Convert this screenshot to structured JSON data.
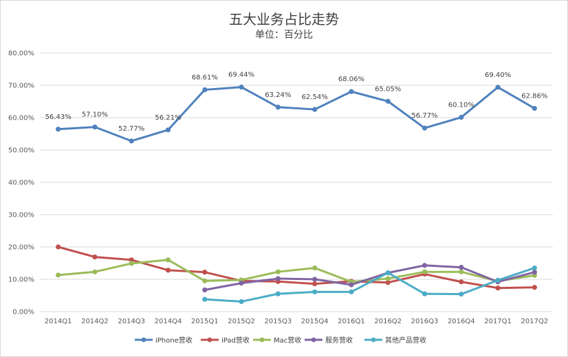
{
  "chart_data": {
    "type": "line",
    "title": "五大业务占比走势",
    "subtitle": "单位：百分比",
    "categories": [
      "2014Q1",
      "2014Q2",
      "2014Q3",
      "2014Q4",
      "2015Q1",
      "2015Q2",
      "2015Q3",
      "2015Q4",
      "2016Q1",
      "2016Q2",
      "2016Q3",
      "2016Q4",
      "2017Q1",
      "2017Q2"
    ],
    "y_ticks": [
      "0.00%",
      "10.00%",
      "20.00%",
      "30.00%",
      "40.00%",
      "50.00%",
      "60.00%",
      "70.00%",
      "80.00%"
    ],
    "ylim": [
      0,
      80
    ],
    "grid": true,
    "legend_position": "bottom",
    "series": [
      {
        "name": "iPhone营收",
        "color": "#4f81bd",
        "values": [
          56.43,
          57.1,
          52.77,
          56.21,
          68.61,
          69.44,
          63.24,
          62.54,
          68.06,
          65.05,
          56.77,
          60.1,
          69.4,
          62.86
        ],
        "labels": [
          "56.43%",
          "57.10%",
          "52.77%",
          "56.21%",
          "68.61%",
          "69.44%",
          "63.24%",
          "62.54%",
          "68.06%",
          "65.05%",
          "56.77%",
          "60.10%",
          "69.40%",
          "62.86%"
        ]
      },
      {
        "name": "iPad营收",
        "color": "#c0504d",
        "values": [
          20.0,
          16.9,
          16.0,
          12.8,
          12.2,
          9.5,
          9.3,
          8.6,
          9.4,
          9.0,
          11.6,
          9.2,
          7.3,
          7.5
        ]
      },
      {
        "name": "Mac营收",
        "color": "#9bbb59",
        "values": [
          11.3,
          12.3,
          14.9,
          16.0,
          9.5,
          9.8,
          12.3,
          13.5,
          9.2,
          10.2,
          12.3,
          12.3,
          9.4,
          11.2
        ]
      },
      {
        "name": "服务营收",
        "color": "#8064a2",
        "values": [
          null,
          null,
          null,
          null,
          6.7,
          8.8,
          10.2,
          10.0,
          8.3,
          12.0,
          14.3,
          13.7,
          9.2,
          12.2
        ]
      },
      {
        "name": "其他产品营收",
        "color": "#4bacc6",
        "values": [
          null,
          null,
          null,
          null,
          3.8,
          3.1,
          5.5,
          6.1,
          6.1,
          12.0,
          5.5,
          5.4,
          9.7,
          13.5
        ]
      }
    ]
  }
}
